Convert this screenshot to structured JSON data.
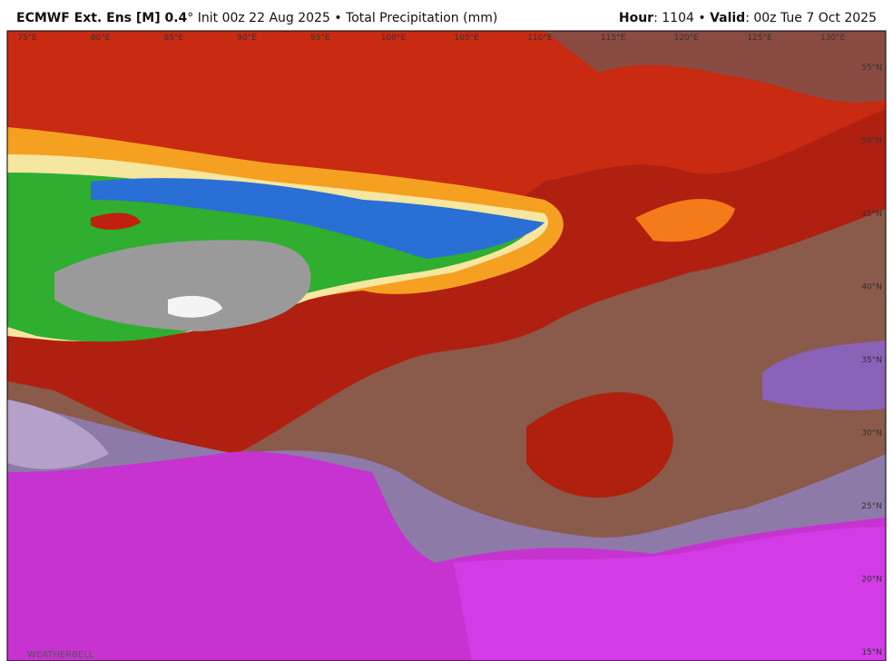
{
  "header": {
    "model": "ECMWF Ext. Ens [M] 0.4",
    "degree": "°",
    "init": "Init 00z 22 Aug 2025",
    "separator": "•",
    "product": "Total Precipitation (mm)",
    "hour_label": "Hour",
    "hour_value": ": 1104",
    "valid_label": "Valid",
    "valid_value": ": 00z Tue 7 Oct 2025"
  },
  "map": {
    "longitudes": [
      "75°E",
      "80°E",
      "85°E",
      "90°E",
      "95°E",
      "100°E",
      "105°E",
      "110°E",
      "115°E",
      "120°E",
      "125°E",
      "130°E"
    ],
    "latitudes": [
      "55°N",
      "50°N",
      "45°N",
      "40°N",
      "35°N",
      "30°N",
      "25°N",
      "20°N",
      "15°N"
    ],
    "logo": "WEATHERBELL"
  }
}
